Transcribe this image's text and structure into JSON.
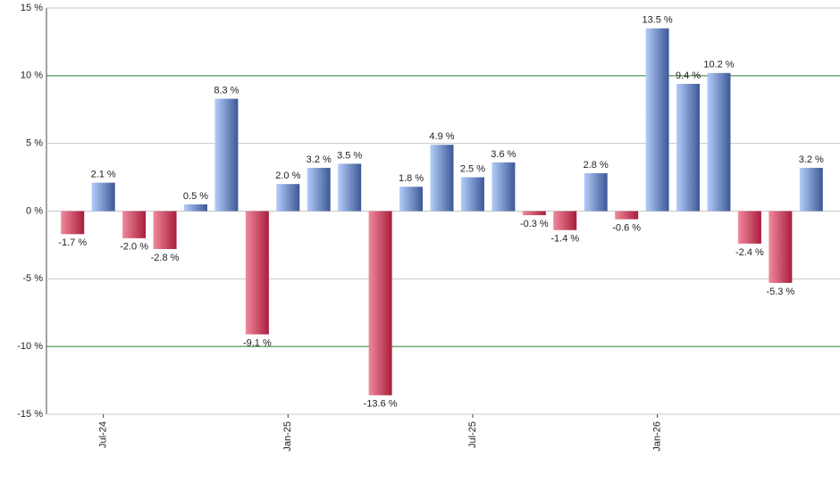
{
  "chart_data": {
    "type": "bar",
    "categories": [
      null,
      "Jul-24",
      null,
      null,
      null,
      null,
      null,
      "Jan-25",
      null,
      null,
      null,
      null,
      null,
      "Jul-25",
      null,
      null,
      null,
      null,
      null,
      "Jan-26",
      null,
      null,
      null,
      null,
      null
    ],
    "values": [
      -1.7,
      2.1,
      -2.0,
      -2.8,
      0.5,
      8.3,
      -9.1,
      2.0,
      3.2,
      3.5,
      -13.6,
      1.8,
      4.9,
      2.5,
      3.6,
      -0.3,
      -1.4,
      2.8,
      -0.6,
      13.5,
      9.4,
      10.2,
      -2.4,
      -5.3,
      3.2
    ],
    "value_labels": [
      "-1.7 %",
      "2.1 %",
      "-2.0 %",
      "-2.8 %",
      "0.5 %",
      "8.3 %",
      "-9.1 %",
      "2.0 %",
      "3.2 %",
      "3.5 %",
      "-13.6 %",
      "1.8 %",
      "4.9 %",
      "2.5 %",
      "3.6 %",
      "-0.3 %",
      "-1.4 %",
      "2.8 %",
      "-0.6 %",
      "13.5 %",
      "9.4 %",
      "10.2 %",
      "-2.4 %",
      "-5.3 %",
      "3.2 %"
    ],
    "ylim": [
      -15,
      15
    ],
    "yticks": [
      {
        "value": -15,
        "label": "-15 %"
      },
      {
        "value": -10,
        "label": "-10 %"
      },
      {
        "value": -5,
        "label": "-5 %"
      },
      {
        "value": 0,
        "label": "0 %"
      },
      {
        "value": 5,
        "label": "5 %"
      },
      {
        "value": 10,
        "label": "10 %"
      },
      {
        "value": 15,
        "label": "15 %"
      }
    ],
    "grid": true,
    "positive_colors": [
      "#b4cdfa",
      "#3c5896"
    ],
    "negative_colors": [
      "#f08a9c",
      "#a81d3c"
    ]
  }
}
